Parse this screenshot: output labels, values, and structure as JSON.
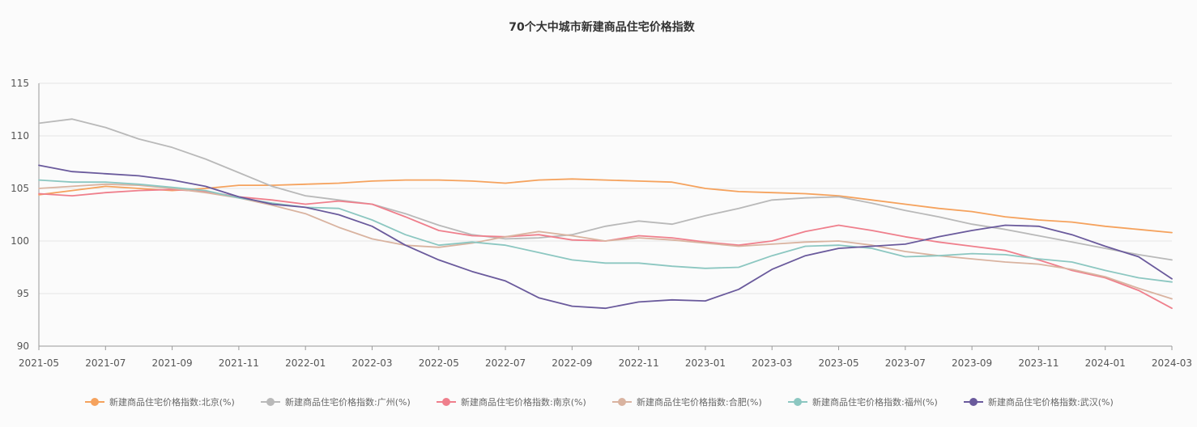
{
  "chart_data": {
    "type": "line",
    "title": "70个大中城市新建商品住宅价格指数",
    "xlabel": "",
    "ylabel": "",
    "ylim": [
      90,
      115
    ],
    "y_ticks": [
      "90",
      "95",
      "100",
      "105",
      "110",
      "115"
    ],
    "grid": "horizontal",
    "legend_position": "bottom",
    "x": [
      "2021-05",
      "2021-06",
      "2021-07",
      "2021-08",
      "2021-09",
      "2021-10",
      "2021-11",
      "2021-12",
      "2022-01",
      "2022-02",
      "2022-03",
      "2022-04",
      "2022-05",
      "2022-06",
      "2022-07",
      "2022-08",
      "2022-09",
      "2022-10",
      "2022-11",
      "2022-12",
      "2023-01",
      "2023-02",
      "2023-03",
      "2023-04",
      "2023-05",
      "2023-06",
      "2023-07",
      "2023-08",
      "2023-09",
      "2023-10",
      "2023-11",
      "2023-12",
      "2024-01",
      "2024-02",
      "2024-03"
    ],
    "x_tick_labels": [
      "2021-05",
      "2021-07",
      "2021-09",
      "2021-11",
      "2022-01",
      "2022-03",
      "2022-05",
      "2022-07",
      "2022-09",
      "2022-11",
      "2023-01",
      "2023-03",
      "2023-05",
      "2023-07",
      "2023-09",
      "2023-11",
      "2024-01",
      "2024-03"
    ],
    "series": [
      {
        "name": "新建商品住宅价格指数:北京(%)",
        "color": "#f5a25d",
        "values": [
          104.4,
          104.8,
          105.2,
          105.0,
          104.8,
          105.0,
          105.3,
          105.3,
          105.4,
          105.5,
          105.7,
          105.8,
          105.8,
          105.7,
          105.5,
          105.8,
          105.9,
          105.8,
          105.7,
          105.6,
          105.0,
          104.7,
          104.6,
          104.5,
          104.3,
          103.9,
          103.5,
          103.1,
          102.8,
          102.3,
          102.0,
          101.8,
          101.4,
          101.1,
          100.8
        ]
      },
      {
        "name": "新建商品住宅价格指数:广州(%)",
        "color": "#b9b9b9",
        "values": [
          111.2,
          111.6,
          110.8,
          109.7,
          108.9,
          107.8,
          106.5,
          105.2,
          104.3,
          103.9,
          103.5,
          102.6,
          101.5,
          100.6,
          100.2,
          100.3,
          100.6,
          101.4,
          101.9,
          101.6,
          102.4,
          103.1,
          103.9,
          104.1,
          104.2,
          103.6,
          102.9,
          102.3,
          101.6,
          101.1,
          100.5,
          99.9,
          99.3,
          98.7,
          98.2
        ]
      },
      {
        "name": "新建商品住宅价格指数:南京(%)",
        "color": "#ef7f8c",
        "values": [
          104.5,
          104.3,
          104.6,
          104.8,
          104.9,
          104.7,
          104.2,
          103.9,
          103.5,
          103.8,
          103.5,
          102.3,
          101.0,
          100.5,
          100.4,
          100.6,
          100.1,
          100.0,
          100.5,
          100.3,
          99.9,
          99.6,
          100.0,
          100.9,
          101.5,
          101.0,
          100.4,
          99.9,
          99.5,
          99.1,
          98.2,
          97.2,
          96.5,
          95.3,
          93.6
        ]
      },
      {
        "name": "新建商品住宅价格指数:合肥(%)",
        "color": "#d9b3a0",
        "values": [
          105.0,
          105.2,
          105.4,
          105.3,
          105.0,
          104.6,
          104.1,
          103.4,
          102.6,
          101.3,
          100.2,
          99.6,
          99.4,
          99.8,
          100.4,
          100.9,
          100.5,
          100.0,
          100.3,
          100.1,
          99.8,
          99.5,
          99.7,
          99.9,
          100.0,
          99.6,
          99.0,
          98.6,
          98.3,
          98.0,
          97.8,
          97.3,
          96.6,
          95.5,
          94.5
        ]
      },
      {
        "name": "新建商品住宅价格指数:福州(%)",
        "color": "#8cc7c1",
        "values": [
          105.8,
          105.6,
          105.6,
          105.4,
          105.1,
          104.8,
          104.1,
          103.6,
          103.2,
          103.1,
          102.0,
          100.6,
          99.6,
          99.9,
          99.6,
          98.9,
          98.2,
          97.9,
          97.9,
          97.6,
          97.4,
          97.5,
          98.6,
          99.5,
          99.6,
          99.3,
          98.5,
          98.6,
          98.8,
          98.7,
          98.3,
          98.0,
          97.2,
          96.5,
          96.1
        ]
      },
      {
        "name": "新建商品住宅价格指数:武汉(%)",
        "color": "#6a5a9c",
        "values": [
          107.2,
          106.6,
          106.4,
          106.2,
          105.8,
          105.2,
          104.2,
          103.5,
          103.2,
          102.5,
          101.4,
          99.6,
          98.2,
          97.1,
          96.2,
          94.6,
          93.8,
          93.6,
          94.2,
          94.4,
          94.3,
          95.4,
          97.3,
          98.6,
          99.3,
          99.5,
          99.7,
          100.4,
          101.0,
          101.5,
          101.4,
          100.6,
          99.5,
          98.5,
          96.4
        ]
      }
    ]
  }
}
